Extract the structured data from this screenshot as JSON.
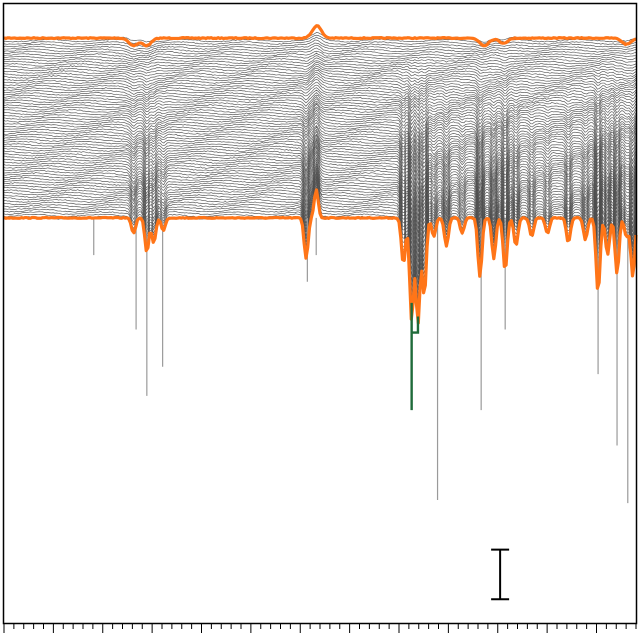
{
  "chart_data": {
    "type": "line",
    "title": "",
    "xlabel": "",
    "ylabel": "",
    "grid": false,
    "legend": "none",
    "x_range": [
      0,
      1
    ],
    "x_minor_ticks": 64,
    "x_major_every": 5,
    "trace_count": 75,
    "colors": {
      "trace": "#4d4d4d",
      "highlight": "#ff7518",
      "stick": "#9a9a9a",
      "bracket": "#1f6b3a",
      "scale_bar": "#000000",
      "frame": "#000000"
    },
    "highlighted_traces": [
      "first",
      "last"
    ],
    "upper_trace": {
      "baseline": 0.055,
      "features": [
        {
          "x": 0.205,
          "depth": 0.012
        },
        {
          "x": 0.226,
          "depth": 0.012
        },
        {
          "x": 0.495,
          "depth": -0.02
        },
        {
          "x": 0.76,
          "depth": 0.012
        },
        {
          "x": 0.79,
          "depth": 0.008
        },
        {
          "x": 0.985,
          "depth": 0.01
        }
      ]
    },
    "lower_trace": {
      "baseline": 0.345,
      "peaks": [
        {
          "x": 0.205,
          "depth": 0.025
        },
        {
          "x": 0.226,
          "depth": 0.055
        },
        {
          "x": 0.237,
          "depth": 0.04
        },
        {
          "x": 0.252,
          "depth": 0.02
        },
        {
          "x": 0.478,
          "depth": 0.065
        },
        {
          "x": 0.494,
          "depth": -0.045
        },
        {
          "x": 0.632,
          "depth": 0.075
        },
        {
          "x": 0.645,
          "depth": 0.165
        },
        {
          "x": 0.655,
          "depth": 0.17
        },
        {
          "x": 0.665,
          "depth": 0.125
        },
        {
          "x": 0.68,
          "depth": 0.03
        },
        {
          "x": 0.7,
          "depth": 0.045
        },
        {
          "x": 0.725,
          "depth": 0.025
        },
        {
          "x": 0.753,
          "depth": 0.095
        },
        {
          "x": 0.775,
          "depth": 0.065
        },
        {
          "x": 0.793,
          "depth": 0.085
        },
        {
          "x": 0.81,
          "depth": 0.045
        },
        {
          "x": 0.835,
          "depth": 0.03
        },
        {
          "x": 0.86,
          "depth": 0.025
        },
        {
          "x": 0.893,
          "depth": 0.04
        },
        {
          "x": 0.92,
          "depth": 0.035
        },
        {
          "x": 0.94,
          "depth": 0.12
        },
        {
          "x": 0.955,
          "depth": 0.06
        },
        {
          "x": 0.97,
          "depth": 0.09
        },
        {
          "x": 0.985,
          "depth": 0.03
        },
        {
          "x": 0.995,
          "depth": 0.095
        }
      ]
    },
    "sticks": [
      {
        "x": 0.142,
        "y_end": 0.405
      },
      {
        "x": 0.209,
        "y_end": 0.525
      },
      {
        "x": 0.226,
        "y_end": 0.632
      },
      {
        "x": 0.251,
        "y_end": 0.585
      },
      {
        "x": 0.48,
        "y_end": 0.448
      },
      {
        "x": 0.494,
        "y_end": 0.405
      },
      {
        "x": 0.686,
        "y_end": 0.8
      },
      {
        "x": 0.755,
        "y_end": 0.655
      },
      {
        "x": 0.793,
        "y_end": 0.525
      },
      {
        "x": 0.94,
        "y_end": 0.597
      },
      {
        "x": 0.97,
        "y_end": 0.712
      },
      {
        "x": 0.987,
        "y_end": 0.805
      }
    ],
    "bracket": {
      "x1": 0.645,
      "x2": 0.655,
      "top": 0.482,
      "mid": 0.53,
      "bottom": 0.655
    },
    "scale_bar": {
      "x": 0.785,
      "top": 0.88,
      "bottom": 0.96
    }
  }
}
